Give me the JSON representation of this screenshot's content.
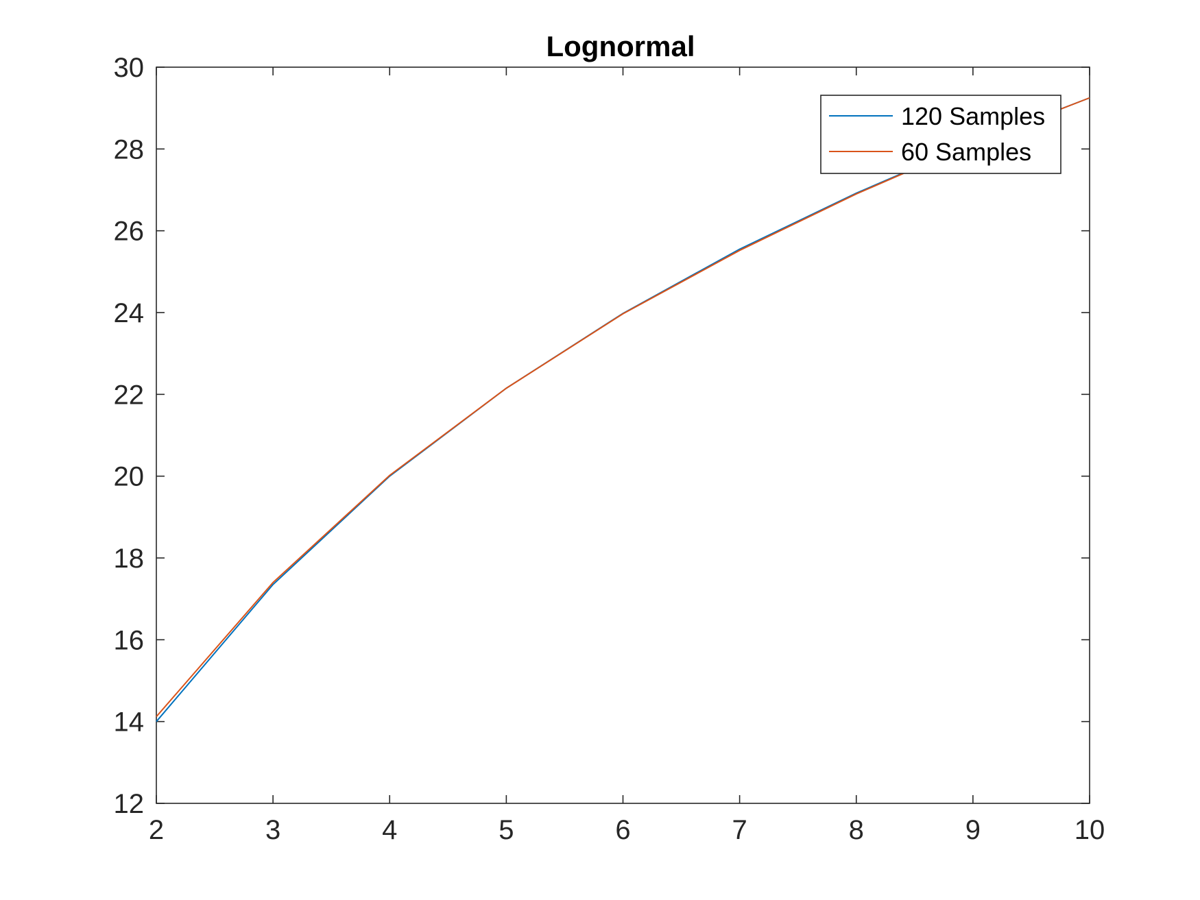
{
  "chart_data": {
    "type": "line",
    "title": "Lognormal",
    "xlabel": "",
    "ylabel": "",
    "xlim": [
      2,
      10
    ],
    "ylim": [
      12,
      30
    ],
    "x_ticks": [
      2,
      3,
      4,
      5,
      6,
      7,
      8,
      9,
      10
    ],
    "y_ticks": [
      12,
      14,
      16,
      18,
      20,
      22,
      24,
      26,
      28,
      30
    ],
    "grid": false,
    "legend_position": "top-right",
    "x": [
      2,
      3,
      4,
      5,
      6,
      7,
      8,
      9,
      10
    ],
    "series": [
      {
        "name": "120 Samples",
        "color": "#0072BD",
        "values": [
          14.0,
          17.35,
          20.0,
          22.15,
          23.98,
          25.55,
          26.92,
          28.15,
          29.25
        ]
      },
      {
        "name": "60 Samples",
        "color": "#D95319",
        "values": [
          14.12,
          17.4,
          20.02,
          22.15,
          23.97,
          25.52,
          26.9,
          28.14,
          29.25
        ]
      }
    ]
  }
}
